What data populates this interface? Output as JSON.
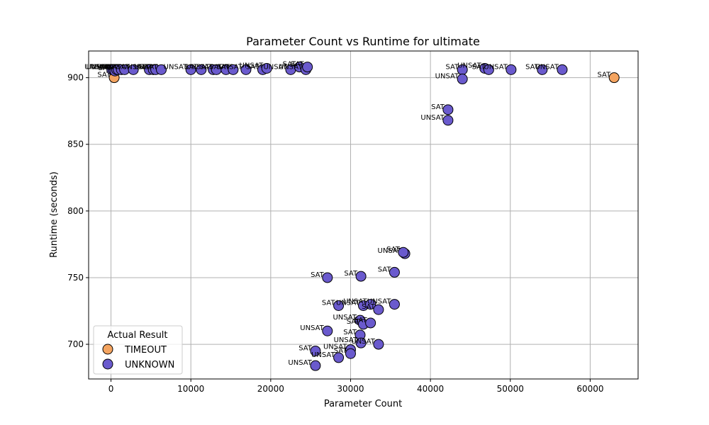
{
  "chart_data": {
    "type": "scatter",
    "title": "Parameter Count vs Runtime for ultimate",
    "xlabel": "Parameter Count",
    "ylabel": "Runtime (seconds)",
    "xlim": [
      -2800,
      66000
    ],
    "ylim": [
      674,
      920
    ],
    "xticks": [
      0,
      10000,
      20000,
      30000,
      40000,
      50000,
      60000
    ],
    "yticks": [
      700,
      750,
      800,
      850,
      900
    ],
    "grid": true,
    "legend": {
      "title": "Actual Result",
      "placement": "lower-left"
    },
    "series": [
      {
        "name": "TIMEOUT",
        "color": "#f4a460",
        "points": [
          {
            "x": 400,
            "y": 900,
            "label": "SAT"
          },
          {
            "x": 63000,
            "y": 900,
            "label": "SAT"
          }
        ]
      },
      {
        "name": "UNKNOWN",
        "color": "#6a5acd",
        "points": [
          {
            "x": 100,
            "y": 906,
            "label": "UNSAT"
          },
          {
            "x": 300,
            "y": 906,
            "label": "UNSAT"
          },
          {
            "x": 500,
            "y": 905,
            "label": "SAT"
          },
          {
            "x": 700,
            "y": 906,
            "label": "SAT"
          },
          {
            "x": 900,
            "y": 906,
            "label": "UNSAT"
          },
          {
            "x": 1300,
            "y": 906,
            "label": "SAT"
          },
          {
            "x": 1700,
            "y": 906,
            "label": "UNSAT"
          },
          {
            "x": 2800,
            "y": 906,
            "label": "SAT"
          },
          {
            "x": 4800,
            "y": 906,
            "label": "UNSAT"
          },
          {
            "x": 5300,
            "y": 906,
            "label": "SAT"
          },
          {
            "x": 5600,
            "y": 906,
            "label": "SAT"
          },
          {
            "x": 6300,
            "y": 906,
            "label": "UNSAT"
          },
          {
            "x": 10000,
            "y": 906,
            "label": "UNSAT"
          },
          {
            "x": 11300,
            "y": 906,
            "label": "SAT"
          },
          {
            "x": 12800,
            "y": 906,
            "label": "UNSAT"
          },
          {
            "x": 13200,
            "y": 906,
            "label": "SAT"
          },
          {
            "x": 14400,
            "y": 906,
            "label": "SAT"
          },
          {
            "x": 15300,
            "y": 906,
            "label": "SAT"
          },
          {
            "x": 16900,
            "y": 906,
            "label": "UNSAT"
          },
          {
            "x": 19000,
            "y": 906,
            "label": "SAT"
          },
          {
            "x": 19500,
            "y": 907,
            "label": "UNSAT"
          },
          {
            "x": 22500,
            "y": 906,
            "label": "UNSAT"
          },
          {
            "x": 23600,
            "y": 908,
            "label": "SAT"
          },
          {
            "x": 24400,
            "y": 906,
            "label": "UNSAT"
          },
          {
            "x": 24600,
            "y": 908,
            "label": "SAT"
          },
          {
            "x": 44000,
            "y": 906,
            "label": "SAT"
          },
          {
            "x": 44000,
            "y": 899,
            "label": "UNSAT"
          },
          {
            "x": 42200,
            "y": 876,
            "label": "SAT"
          },
          {
            "x": 42200,
            "y": 868,
            "label": "UNSAT"
          },
          {
            "x": 46800,
            "y": 907,
            "label": "UNSAT"
          },
          {
            "x": 47300,
            "y": 906,
            "label": "SAT"
          },
          {
            "x": 50100,
            "y": 906,
            "label": "UNSAT"
          },
          {
            "x": 54000,
            "y": 906,
            "label": "SAT"
          },
          {
            "x": 56500,
            "y": 906,
            "label": "UNSAT"
          },
          {
            "x": 36800,
            "y": 768,
            "label": "UNSAT"
          },
          {
            "x": 36600,
            "y": 769,
            "label": "SAT"
          },
          {
            "x": 35500,
            "y": 754,
            "label": "SAT"
          },
          {
            "x": 31300,
            "y": 751,
            "label": "SAT"
          },
          {
            "x": 27100,
            "y": 750,
            "label": "SAT"
          },
          {
            "x": 28500,
            "y": 729,
            "label": "SAT"
          },
          {
            "x": 31600,
            "y": 729,
            "label": "UNSAT"
          },
          {
            "x": 32500,
            "y": 730,
            "label": "UNSAT"
          },
          {
            "x": 33500,
            "y": 726,
            "label": "SAT"
          },
          {
            "x": 35500,
            "y": 730,
            "label": "UNSAT"
          },
          {
            "x": 31200,
            "y": 718,
            "label": "UNSAT"
          },
          {
            "x": 31600,
            "y": 715,
            "label": "SAT"
          },
          {
            "x": 32500,
            "y": 716,
            "label": "SAT"
          },
          {
            "x": 27100,
            "y": 710,
            "label": "UNSAT"
          },
          {
            "x": 31200,
            "y": 707,
            "label": "SAT"
          },
          {
            "x": 31300,
            "y": 701,
            "label": "UNSAT"
          },
          {
            "x": 33500,
            "y": 700,
            "label": "UNSAT"
          },
          {
            "x": 30000,
            "y": 696,
            "label": "UNSAT"
          },
          {
            "x": 30000,
            "y": 693,
            "label": "SAT"
          },
          {
            "x": 25600,
            "y": 695,
            "label": "SAT"
          },
          {
            "x": 28500,
            "y": 690,
            "label": "UNSAT"
          },
          {
            "x": 25600,
            "y": 684,
            "label": "UNSAT"
          }
        ]
      }
    ]
  }
}
